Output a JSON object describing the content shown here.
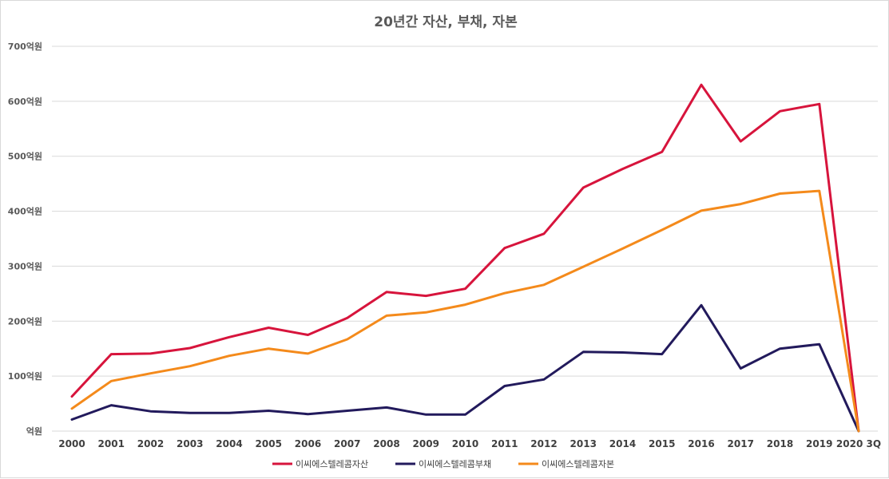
{
  "chart_data": {
    "type": "line",
    "title": "20년간 자산, 부채, 자본",
    "categories": [
      "2000",
      "2001",
      "2002",
      "2003",
      "2004",
      "2005",
      "2006",
      "2007",
      "2008",
      "2009",
      "2010",
      "2011",
      "2012",
      "2013",
      "2014",
      "2015",
      "2016",
      "2017",
      "2018",
      "2019",
      "2020 3Q"
    ],
    "y_ticks": [
      "억원",
      "100억원",
      "200억원",
      "300억원",
      "400억원",
      "500억원",
      "600억원",
      "700억원"
    ],
    "ylim": [
      0,
      700
    ],
    "grid": true,
    "legend_position": "bottom",
    "series": [
      {
        "name": "이씨에스텔레콤자산",
        "color": "#d7143c",
        "values": [
          63,
          140,
          141,
          151,
          171,
          188,
          175,
          206,
          253,
          246,
          259,
          333,
          359,
          443,
          477,
          508,
          630,
          527,
          582,
          595,
          0
        ]
      },
      {
        "name": "이씨에스텔레콤부채",
        "color": "#221a5c",
        "values": [
          21,
          47,
          36,
          33,
          33,
          37,
          31,
          37,
          43,
          30,
          30,
          82,
          94,
          144,
          143,
          140,
          229,
          114,
          150,
          158,
          0
        ]
      },
      {
        "name": "이씨에스텔레콤자본",
        "color": "#f48a1b",
        "values": [
          41,
          91,
          105,
          118,
          137,
          150,
          141,
          167,
          210,
          216,
          230,
          251,
          266,
          299,
          332,
          366,
          401,
          413,
          432,
          437,
          0
        ]
      }
    ]
  }
}
